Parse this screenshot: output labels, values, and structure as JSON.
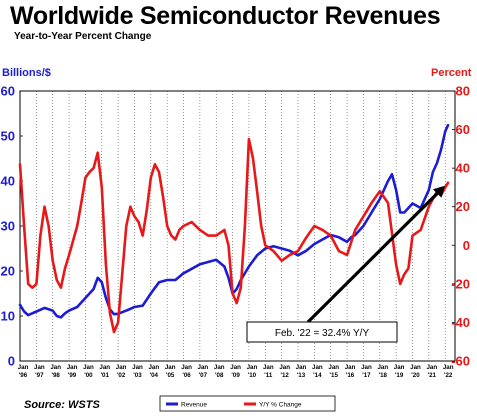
{
  "header": {
    "title": "Worldwide Semiconductor Revenues",
    "subtitle": "Year-to-Year Percent Change"
  },
  "footer": {
    "source": "Source: WSTS"
  },
  "colors": {
    "revenue": "#1c1cd4",
    "yoy": "#e81818",
    "annotation": "#000000"
  },
  "chart_data": {
    "type": "line",
    "title": "Worldwide Semiconductor Revenues",
    "subtitle": "Year-to-Year Percent Change",
    "y_left": {
      "label": "Billions/$",
      "range": [
        0,
        60
      ],
      "ticks": [
        "0",
        "10",
        "20",
        "30",
        "40",
        "50",
        "60"
      ]
    },
    "y_right": {
      "label": "Percent",
      "range": [
        -60,
        80
      ],
      "ticks": [
        "-60",
        "-40",
        "-20",
        "0",
        "20",
        "40",
        "60",
        "80"
      ]
    },
    "x_ticks": [
      {
        "top": "Jan",
        "bottom": "'96"
      },
      {
        "top": "Jan",
        "bottom": "'97"
      },
      {
        "top": "Jan",
        "bottom": "'98"
      },
      {
        "top": "Jan",
        "bottom": "'99"
      },
      {
        "top": "Jan",
        "bottom": "'00"
      },
      {
        "top": "Jan",
        "bottom": "'01"
      },
      {
        "top": "Jan",
        "bottom": "'02"
      },
      {
        "top": "Jan",
        "bottom": "'03"
      },
      {
        "top": "Jan",
        "bottom": "'04"
      },
      {
        "top": "Jan",
        "bottom": "'05"
      },
      {
        "top": "Jan",
        "bottom": "'06"
      },
      {
        "top": "Jan",
        "bottom": "'07"
      },
      {
        "top": "Jan",
        "bottom": "'08"
      },
      {
        "top": "Jan",
        "bottom": "'09"
      },
      {
        "top": "Jan",
        "bottom": "'10"
      },
      {
        "top": "Jan",
        "bottom": "'11"
      },
      {
        "top": "Jan",
        "bottom": "'12"
      },
      {
        "top": "Jan",
        "bottom": "'13"
      },
      {
        "top": "Jan",
        "bottom": "'14"
      },
      {
        "top": "Jan",
        "bottom": "'15"
      },
      {
        "top": "Jan",
        "bottom": "'16"
      },
      {
        "top": "Jan",
        "bottom": "'17"
      },
      {
        "top": "Jan",
        "bottom": "'18"
      },
      {
        "top": "Jan",
        "bottom": "'19"
      },
      {
        "top": "Jan",
        "bottom": "'20"
      },
      {
        "top": "Jan",
        "bottom": "'21"
      },
      {
        "top": "Jan",
        "bottom": "'22"
      }
    ],
    "grid": "vertical dotted",
    "legend_position": "bottom-center",
    "series": [
      {
        "name": "Revenue",
        "axis": "left",
        "x": [
          1996.0,
          1996.25,
          1996.5,
          1996.75,
          1997.0,
          1997.5,
          1998.0,
          1998.25,
          1998.5,
          1998.75,
          1999.0,
          1999.5,
          2000.0,
          2000.5,
          2000.75,
          2001.0,
          2001.25,
          2001.5,
          2001.75,
          2002.0,
          2002.5,
          2003.0,
          2003.5,
          2004.0,
          2004.5,
          2005.0,
          2005.5,
          2006.0,
          2006.5,
          2007.0,
          2007.5,
          2008.0,
          2008.5,
          2008.75,
          2009.0,
          2009.25,
          2009.5,
          2010.0,
          2010.5,
          2011.0,
          2011.5,
          2012.0,
          2012.5,
          2013.0,
          2013.5,
          2014.0,
          2014.5,
          2015.0,
          2015.5,
          2016.0,
          2016.25,
          2016.5,
          2017.0,
          2017.5,
          2018.0,
          2018.5,
          2018.75,
          2019.0,
          2019.25,
          2019.5,
          2020.0,
          2020.5,
          2021.0,
          2021.25,
          2021.5,
          2021.75,
          2022.0,
          2022.17
        ],
        "values": [
          12.5,
          11,
          10.2,
          10.6,
          11,
          11.8,
          11.2,
          10,
          9.7,
          10.6,
          11.2,
          12,
          14,
          16,
          18.5,
          17.5,
          14,
          11.5,
          10.4,
          10.5,
          11.2,
          12,
          12.3,
          15,
          17.5,
          18,
          18,
          19.5,
          20.5,
          21.5,
          22,
          22.5,
          21,
          18.5,
          15,
          16,
          18,
          21,
          23.5,
          25,
          25.5,
          25,
          24.5,
          23.5,
          24.5,
          26,
          27,
          28,
          27.5,
          26.5,
          27.5,
          28,
          30,
          33,
          36,
          40,
          41.5,
          38,
          33,
          33,
          35,
          34,
          38,
          42,
          44,
          47,
          51,
          52.4
        ]
      },
      {
        "name": "Y/Y % Change",
        "axis": "right",
        "x": [
          1996.0,
          1996.25,
          1996.5,
          1996.75,
          1997.0,
          1997.25,
          1997.5,
          1997.75,
          1998.0,
          1998.25,
          1998.5,
          1998.75,
          1999.0,
          1999.5,
          1999.75,
          2000.0,
          2000.25,
          2000.5,
          2000.75,
          2001.0,
          2001.25,
          2001.5,
          2001.75,
          2002.0,
          2002.25,
          2002.5,
          2002.75,
          2003.0,
          2003.25,
          2003.5,
          2003.75,
          2004.0,
          2004.25,
          2004.5,
          2004.75,
          2005.0,
          2005.25,
          2005.5,
          2005.75,
          2006.0,
          2006.5,
          2007.0,
          2007.5,
          2008.0,
          2008.5,
          2008.75,
          2009.0,
          2009.25,
          2009.5,
          2009.75,
          2010.0,
          2010.25,
          2010.5,
          2010.75,
          2011.0,
          2011.5,
          2012.0,
          2012.5,
          2013.0,
          2013.5,
          2014.0,
          2014.5,
          2015.0,
          2015.5,
          2016.0,
          2016.5,
          2017.0,
          2017.5,
          2018.0,
          2018.5,
          2019.0,
          2019.25,
          2019.5,
          2019.75,
          2020.0,
          2020.5,
          2021.0,
          2021.5,
          2021.75,
          2022.0,
          2022.17
        ],
        "values": [
          42,
          10,
          -20,
          -22,
          -20,
          5,
          20,
          10,
          -8,
          -18,
          -22,
          -12,
          -5,
          10,
          22,
          35,
          38,
          40,
          48,
          30,
          -10,
          -35,
          -45,
          -40,
          -15,
          10,
          20,
          15,
          12,
          5,
          18,
          35,
          42,
          38,
          25,
          10,
          5,
          3,
          8,
          10,
          12,
          8,
          5,
          5,
          8,
          0,
          -25,
          -30,
          -22,
          10,
          55,
          45,
          28,
          10,
          0,
          -3,
          -8,
          -5,
          -3,
          4,
          10,
          8,
          5,
          -3,
          -5,
          8,
          15,
          22,
          28,
          22,
          -10,
          -20,
          -15,
          -12,
          5,
          8,
          20,
          28,
          26,
          30,
          32.4
        ]
      }
    ],
    "annotations": [
      {
        "text": "Feb. '22 = 32.4% Y/Y",
        "points_to": {
          "x": 2022.17,
          "y_right": 32.4
        }
      }
    ],
    "legend": [
      {
        "label": "Revenue",
        "color": "#1c1cd4"
      },
      {
        "label": "Y/Y % Change",
        "color": "#e81818"
      }
    ]
  }
}
